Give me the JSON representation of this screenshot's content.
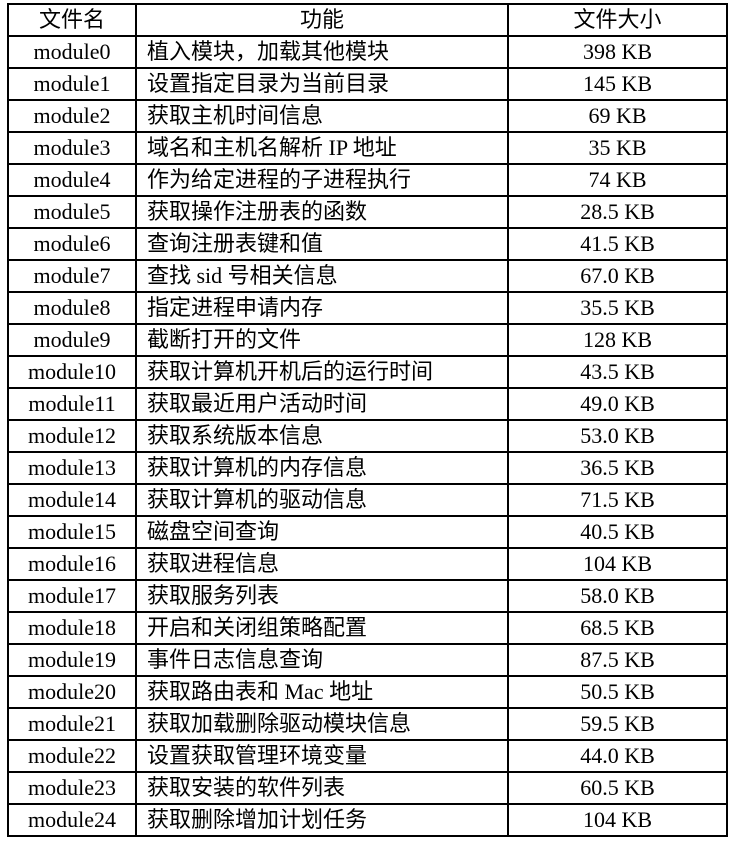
{
  "table": {
    "headers": [
      "文件名",
      "功能",
      "文件大小"
    ],
    "rows": [
      {
        "name": "module0",
        "function": "植入模块，加载其他模块",
        "size": "398 KB"
      },
      {
        "name": "module1",
        "function": "设置指定目录为当前目录",
        "size": "145 KB"
      },
      {
        "name": "module2",
        "function": "获取主机时间信息",
        "size": "69 KB"
      },
      {
        "name": "module3",
        "function": "域名和主机名解析 IP 地址",
        "size": "35 KB"
      },
      {
        "name": "module4",
        "function": "作为给定进程的子进程执行",
        "size": "74 KB"
      },
      {
        "name": "module5",
        "function": "获取操作注册表的函数",
        "size": "28.5 KB"
      },
      {
        "name": "module6",
        "function": "查询注册表键和值",
        "size": "41.5 KB"
      },
      {
        "name": "module7",
        "function": "查找 sid 号相关信息",
        "size": "67.0 KB"
      },
      {
        "name": "module8",
        "function": "指定进程申请内存",
        "size": "35.5 KB"
      },
      {
        "name": "module9",
        "function": "截断打开的文件",
        "size": "128 KB"
      },
      {
        "name": "module10",
        "function": "获取计算机开机后的运行时间",
        "size": "43.5 KB"
      },
      {
        "name": "module11",
        "function": "获取最近用户活动时间",
        "size": "49.0 KB"
      },
      {
        "name": "module12",
        "function": "获取系统版本信息",
        "size": "53.0 KB"
      },
      {
        "name": "module13",
        "function": "获取计算机的内存信息",
        "size": "36.5 KB"
      },
      {
        "name": "module14",
        "function": "获取计算机的驱动信息",
        "size": "71.5 KB"
      },
      {
        "name": "module15",
        "function": "磁盘空间查询",
        "size": "40.5 KB"
      },
      {
        "name": "module16",
        "function": "获取进程信息",
        "size": "104 KB"
      },
      {
        "name": "module17",
        "function": "获取服务列表",
        "size": "58.0 KB"
      },
      {
        "name": "module18",
        "function": "开启和关闭组策略配置",
        "size": "68.5 KB"
      },
      {
        "name": "module19",
        "function": "事件日志信息查询",
        "size": "87.5 KB"
      },
      {
        "name": "module20",
        "function": "获取路由表和 Mac 地址",
        "size": "50.5 KB"
      },
      {
        "name": "module21",
        "function": "获取加载删除驱动模块信息",
        "size": "59.5 KB"
      },
      {
        "name": "module22",
        "function": "设置获取管理环境变量",
        "size": "44.0 KB"
      },
      {
        "name": "module23",
        "function": "获取安装的软件列表",
        "size": "60.5 KB"
      },
      {
        "name": "module24",
        "function": "获取删除增加计划任务",
        "size": "104 KB"
      }
    ]
  }
}
